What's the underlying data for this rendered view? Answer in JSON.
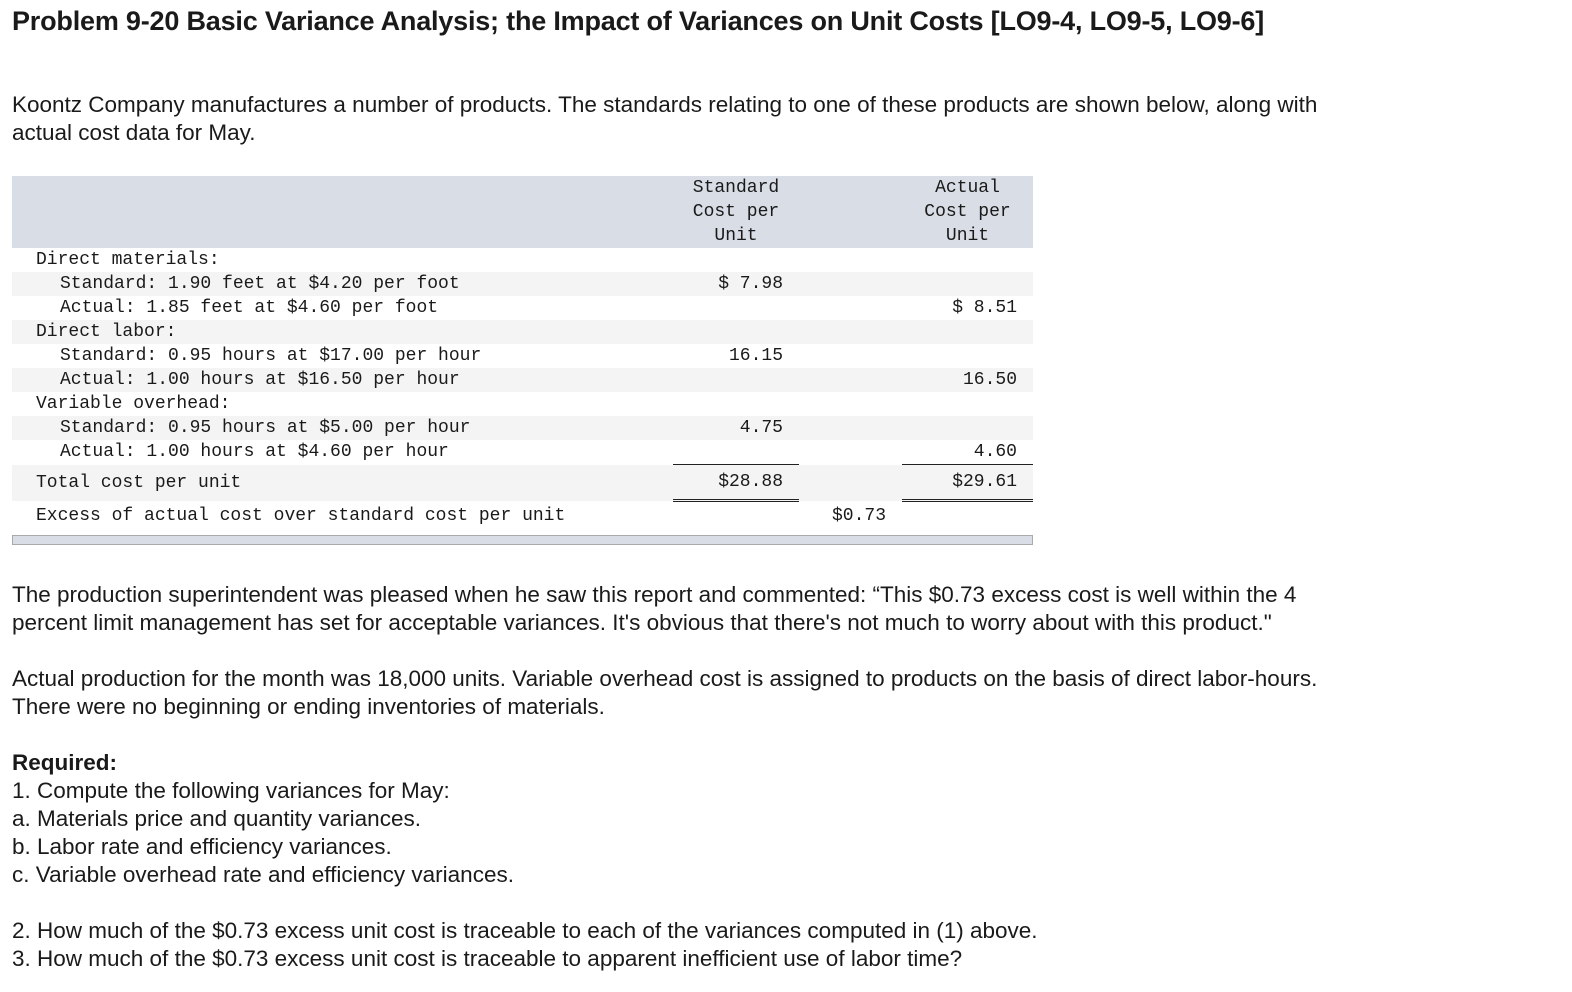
{
  "title": "Problem 9-20 Basic Variance Analysis; the Impact of Variances on Unit Costs [LO9-4, LO9-5, LO9-6]",
  "intro": [
    "Koontz Company manufactures a number of products. The standards relating to one of these products are shown below, along with",
    "actual cost data for May."
  ],
  "table": {
    "headers": [
      "Standard\nCost per\nUnit",
      "Actual\nCost per\nUnit"
    ],
    "rows": [
      {
        "label": "Direct materials:",
        "std": "",
        "act": ""
      },
      {
        "label": "Standard: 1.90 feet at $4.20 per foot",
        "std": "$ 7.98",
        "act": ""
      },
      {
        "label": "Actual: 1.85 feet at $4.60 per foot",
        "std": "",
        "act": "$ 8.51"
      },
      {
        "label": "Direct labor:",
        "std": "",
        "act": ""
      },
      {
        "label": "Standard: 0.95 hours at $17.00 per hour",
        "std": "16.15",
        "act": ""
      },
      {
        "label": "Actual: 1.00 hours at $16.50 per hour",
        "std": "",
        "act": "16.50"
      },
      {
        "label": "Variable overhead:",
        "std": "",
        "act": ""
      },
      {
        "label": "Standard: 0.95 hours at $5.00 per hour",
        "std": "4.75",
        "act": ""
      },
      {
        "label": "Actual: 1.00 hours at $4.60 per hour",
        "std": "",
        "act": "4.60"
      }
    ],
    "total": {
      "label": "Total cost per unit",
      "std": "$28.88",
      "act": "$29.61"
    },
    "excess": {
      "label": "Excess of actual cost over standard cost per unit",
      "value": "$0.73"
    }
  },
  "para2": [
    "The production superintendent was pleased when he saw this report and commented: “This $0.73 excess cost is well within the 4",
    "percent limit management has set for acceptable variances. It's obvious that there's not much to worry about with this product.\""
  ],
  "para3": [
    "Actual production for the month was 18,000 units. Variable overhead cost is assigned to products on the basis of direct labor-hours.",
    "There were no beginning or ending inventories of materials."
  ],
  "required": {
    "heading": "Required:",
    "items": [
      "1. Compute the following variances for May:",
      "a. Materials price and quantity variances.",
      "b. Labor rate and efficiency variances.",
      "c. Variable overhead rate and efficiency variances."
    ]
  },
  "questions": [
    "2. How much of the $0.73 excess unit cost is traceable to each of the variances computed in (1) above.",
    "3. How much of the $0.73 excess unit cost is traceable to apparent inefficient use of labor time?"
  ]
}
